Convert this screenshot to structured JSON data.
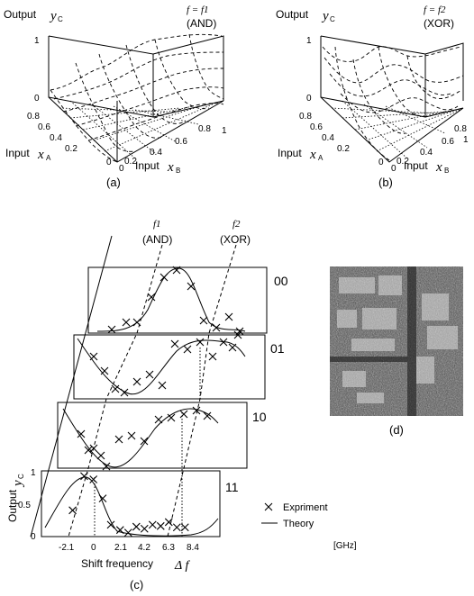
{
  "panel_a": {
    "output_label": "Output",
    "output_var": "y",
    "output_sub": "C",
    "f_label": "f = f1",
    "gate": "(AND)",
    "z_ticks": [
      "1",
      "0.5",
      "0"
    ],
    "xa_ticks": [
      "1",
      "0.8",
      "0.6",
      "0.4",
      "0.2",
      "0"
    ],
    "xb_ticks": [
      "0",
      "0.2",
      "0.4",
      "0.6",
      "0.8",
      "1"
    ],
    "xa_label": "Input",
    "xa_var": "x",
    "xa_sub": "A",
    "xb_label": "Input",
    "xb_var": "x",
    "xb_sub": "B",
    "caption": "(a)"
  },
  "panel_b": {
    "output_label": "Output",
    "output_var": "y",
    "output_sub": "C",
    "f_label": "f = f2",
    "gate": "(XOR)",
    "z_ticks": [
      "1",
      "0.5",
      "0"
    ],
    "xa_ticks": [
      "1",
      "0.8",
      "0.6",
      "0.4",
      "0.2",
      "0"
    ],
    "xb_ticks": [
      "0",
      "0.2",
      "0.4",
      "0.6",
      "0.8",
      "1"
    ],
    "xa_label": "Input",
    "xa_var": "x",
    "xa_sub": "A",
    "xb_label": "Input",
    "xb_var": "x",
    "xb_sub": "B",
    "caption": "(b)"
  },
  "panel_c": {
    "f1_label": "f1",
    "f1_gate": "(AND)",
    "f2_label": "f2",
    "f2_gate": "(XOR)",
    "row_labels": [
      "00",
      "01",
      "10",
      "11"
    ],
    "y_label": "Output",
    "y_var": "y",
    "y_sub": "C",
    "y_ticks": [
      "1",
      "0.5",
      "0"
    ],
    "x_ticks": [
      "-2.1",
      "0",
      "2.1",
      "4.2",
      "6.3",
      "8.4"
    ],
    "x_unit": "[GHz]",
    "x_label": "Shift frequency",
    "x_var": "Δ f",
    "legend_experiment": "Expriment",
    "legend_theory": "Theory",
    "caption": "(c)"
  },
  "panel_d": {
    "caption": "(d)"
  },
  "chart_data": [
    {
      "type": "line",
      "panel": "c",
      "row": "11",
      "x_ticks": [
        -2.1,
        0,
        2.1,
        4.2,
        6.3,
        8.4
      ],
      "ylim": [
        0,
        1
      ],
      "experiment": {
        "x": [
          -1.9,
          -0.9,
          -0.1,
          0.7,
          1.4,
          2.2,
          2.9,
          3.6,
          4.3,
          5.0,
          5.7,
          6.4,
          7.1,
          7.8
        ],
        "y": [
          0.4,
          0.92,
          0.87,
          0.58,
          0.18,
          0.1,
          0.06,
          0.15,
          0.12,
          0.18,
          0.16,
          0.22,
          0.14,
          0.14
        ]
      }
    },
    {
      "type": "line",
      "panel": "c",
      "row": "10",
      "experiment_count": 13
    },
    {
      "type": "line",
      "panel": "c",
      "row": "01",
      "experiment_count": 14
    },
    {
      "type": "line",
      "panel": "c",
      "row": "00",
      "experiment_count": 11
    }
  ]
}
